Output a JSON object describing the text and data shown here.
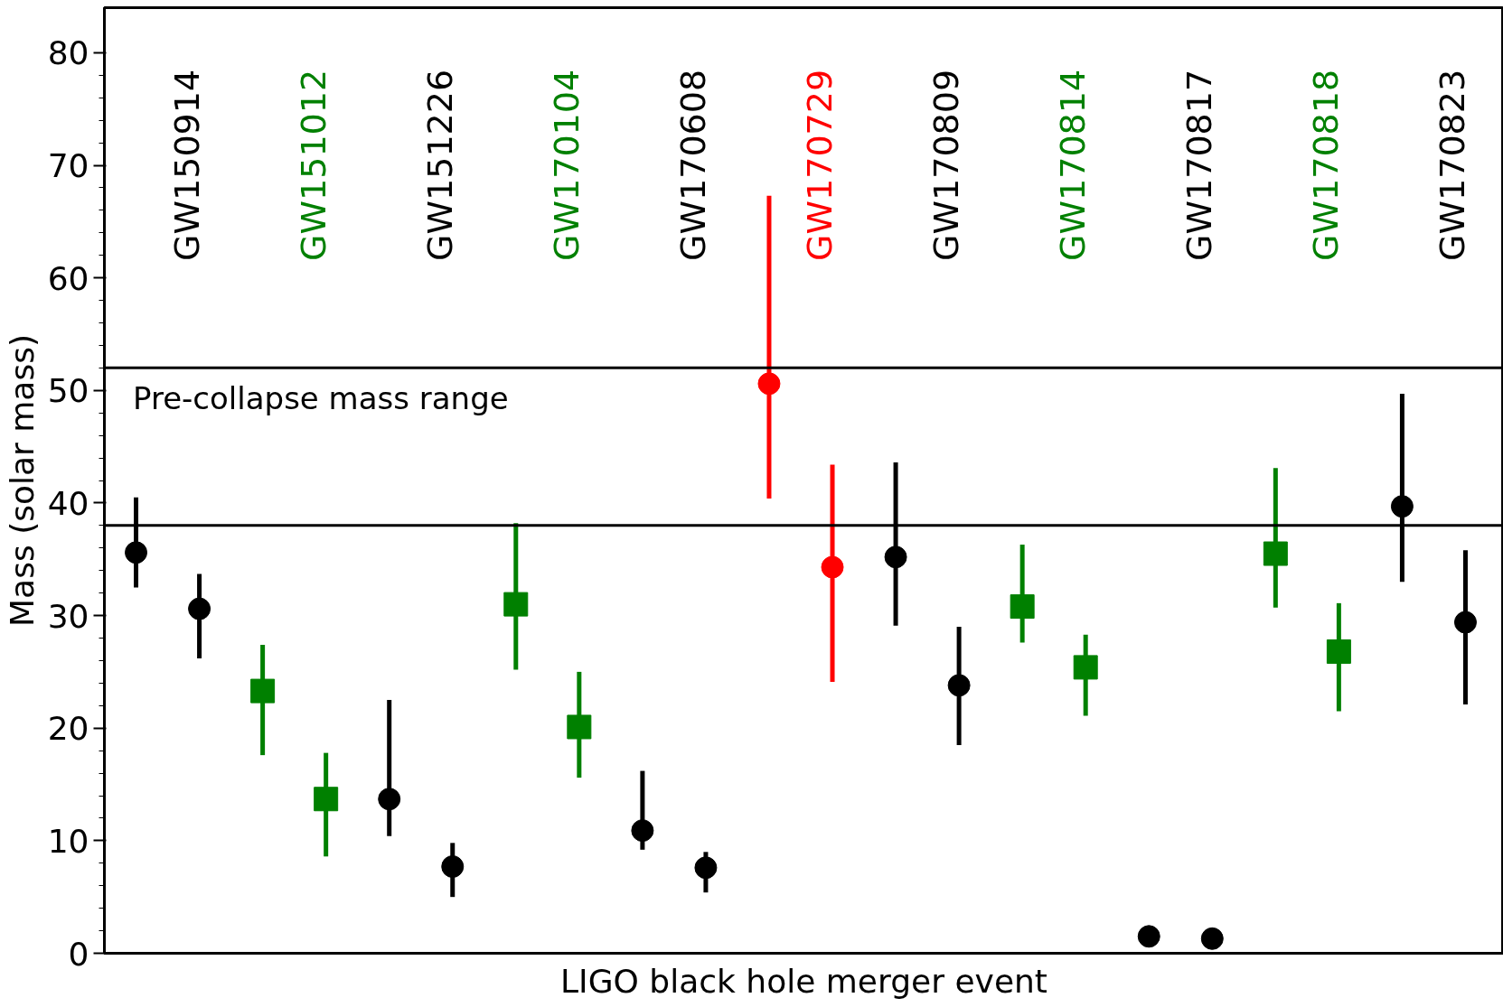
{
  "chart_data": {
    "type": "scatter",
    "xlabel": "LIGO black hole merger event",
    "ylabel": "Mass (solar mass)",
    "categories": [
      null,
      null,
      null,
      null,
      null,
      null,
      null,
      null,
      null,
      null,
      null,
      null,
      null,
      null,
      null,
      null,
      null,
      null,
      null,
      null,
      null,
      null
    ],
    "ylim": [
      0,
      84
    ],
    "yticks": [
      0,
      10,
      20,
      30,
      40,
      50,
      60,
      70,
      80
    ],
    "grid": false,
    "tick_labels": "y",
    "annotations": [
      "GW150914",
      "GW151012",
      "GW151226",
      "GW170104",
      "GW170608",
      "GW170729",
      "GW170809",
      "GW170814",
      "GW170817",
      "GW170818",
      "GW170823"
    ],
    "ref_lines": [
      {
        "axis": "y",
        "value": 52,
        "label": "Pre-collapse mass range",
        "color": "#000000"
      },
      {
        "axis": "y",
        "value": 38,
        "color": "#000000"
      }
    ],
    "series": [
      {
        "color": "#000000",
        "marker": "circle",
        "values": [
          35.6,
          30.6,
          null,
          null,
          null,
          null,
          null,
          null,
          null,
          null,
          null,
          null,
          null,
          null,
          null,
          null,
          null,
          null,
          null,
          null,
          null,
          null
        ],
        "errors": [
          [
            32.5,
            40.5
          ],
          [
            26.2,
            33.7
          ],
          null,
          null,
          null,
          null,
          null,
          null,
          null,
          null,
          null,
          null,
          null,
          null,
          null,
          null,
          null,
          null,
          null,
          null,
          null,
          null
        ]
      },
      {
        "color": "#008000",
        "marker": "square",
        "values": [
          null,
          null,
          23.3,
          13.7,
          null,
          null,
          null,
          null,
          null,
          null,
          null,
          null,
          null,
          null,
          null,
          null,
          null,
          null,
          null,
          null,
          null,
          null
        ],
        "errors": [
          null,
          null,
          [
            17.6,
            27.4
          ],
          [
            8.6,
            17.8
          ],
          null,
          null,
          null,
          null,
          null,
          null,
          null,
          null,
          null,
          null,
          null,
          null,
          null,
          null,
          null,
          null,
          null,
          null
        ]
      },
      {
        "color": "#000000",
        "marker": "circle",
        "values": [
          null,
          null,
          null,
          null,
          13.7,
          7.7,
          null,
          null,
          null,
          null,
          null,
          null,
          null,
          null,
          null,
          null,
          null,
          null,
          null,
          null,
          null,
          null
        ],
        "errors": [
          null,
          null,
          null,
          null,
          [
            10.4,
            22.5
          ],
          [
            5.0,
            9.8
          ],
          null,
          null,
          null,
          null,
          null,
          null,
          null,
          null,
          null,
          null,
          null,
          null,
          null,
          null,
          null,
          null
        ]
      },
      {
        "color": "#008000",
        "marker": "square",
        "values": [
          null,
          null,
          null,
          null,
          null,
          null,
          31.0,
          20.1,
          null,
          null,
          null,
          null,
          null,
          null,
          null,
          null,
          null,
          null,
          null,
          null,
          null,
          null
        ],
        "errors": [
          null,
          null,
          null,
          null,
          null,
          null,
          [
            25.2,
            38.2
          ],
          [
            15.6,
            25.0
          ],
          null,
          null,
          null,
          null,
          null,
          null,
          null,
          null,
          null,
          null,
          null,
          null,
          null,
          null
        ]
      },
      {
        "color": "#000000",
        "marker": "circle",
        "values": [
          null,
          null,
          null,
          null,
          null,
          null,
          null,
          null,
          10.9,
          7.6,
          null,
          null,
          null,
          null,
          null,
          null,
          null,
          null,
          null,
          null,
          null,
          null
        ],
        "errors": [
          null,
          null,
          null,
          null,
          null,
          null,
          null,
          null,
          [
            9.2,
            16.2
          ],
          [
            5.4,
            9.0
          ],
          null,
          null,
          null,
          null,
          null,
          null,
          null,
          null,
          null,
          null,
          null,
          null
        ]
      },
      {
        "color": "#ff0000",
        "marker": "circle",
        "values": [
          null,
          null,
          null,
          null,
          null,
          null,
          null,
          null,
          null,
          null,
          50.6,
          34.3,
          null,
          null,
          null,
          null,
          null,
          null,
          null,
          null,
          null,
          null
        ],
        "errors": [
          null,
          null,
          null,
          null,
          null,
          null,
          null,
          null,
          null,
          null,
          [
            40.4,
            67.3
          ],
          [
            24.1,
            43.4
          ],
          null,
          null,
          null,
          null,
          null,
          null,
          null,
          null,
          null,
          null
        ]
      },
      {
        "color": "#000000",
        "marker": "circle",
        "values": [
          null,
          null,
          null,
          null,
          null,
          null,
          null,
          null,
          null,
          null,
          null,
          null,
          35.2,
          23.8,
          null,
          null,
          null,
          null,
          null,
          null,
          null,
          null
        ],
        "errors": [
          null,
          null,
          null,
          null,
          null,
          null,
          null,
          null,
          null,
          null,
          null,
          null,
          [
            29.1,
            43.6
          ],
          [
            18.5,
            29.0
          ],
          null,
          null,
          null,
          null,
          null,
          null,
          null,
          null
        ]
      },
      {
        "color": "#008000",
        "marker": "square",
        "values": [
          null,
          null,
          null,
          null,
          null,
          null,
          null,
          null,
          null,
          null,
          null,
          null,
          null,
          null,
          30.8,
          25.4,
          null,
          null,
          null,
          null,
          null,
          null
        ],
        "errors": [
          null,
          null,
          null,
          null,
          null,
          null,
          null,
          null,
          null,
          null,
          null,
          null,
          null,
          null,
          [
            27.6,
            36.3
          ],
          [
            21.1,
            28.3
          ],
          null,
          null,
          null,
          null,
          null,
          null
        ]
      },
      {
        "color": "#000000",
        "marker": "circle",
        "values": [
          null,
          null,
          null,
          null,
          null,
          null,
          null,
          null,
          null,
          null,
          null,
          null,
          null,
          null,
          null,
          null,
          1.5,
          1.3,
          null,
          null,
          null,
          null
        ]
      },
      {
        "color": "#008000",
        "marker": "square",
        "values": [
          null,
          null,
          null,
          null,
          null,
          null,
          null,
          null,
          null,
          null,
          null,
          null,
          null,
          null,
          null,
          null,
          null,
          null,
          35.5,
          26.8,
          null,
          null
        ],
        "errors": [
          null,
          null,
          null,
          null,
          null,
          null,
          null,
          null,
          null,
          null,
          null,
          null,
          null,
          null,
          null,
          null,
          null,
          null,
          [
            30.7,
            43.1
          ],
          [
            21.5,
            31.1
          ],
          null,
          null
        ]
      },
      {
        "color": "#000000",
        "marker": "circle",
        "values": [
          null,
          null,
          null,
          null,
          null,
          null,
          null,
          null,
          null,
          null,
          null,
          null,
          null,
          null,
          null,
          null,
          null,
          null,
          null,
          null,
          39.7,
          29.4
        ],
        "errors": [
          null,
          null,
          null,
          null,
          null,
          null,
          null,
          null,
          null,
          null,
          null,
          null,
          null,
          null,
          null,
          null,
          null,
          null,
          null,
          null,
          [
            33.0,
            49.7
          ],
          [
            22.1,
            35.8
          ]
        ]
      }
    ]
  }
}
